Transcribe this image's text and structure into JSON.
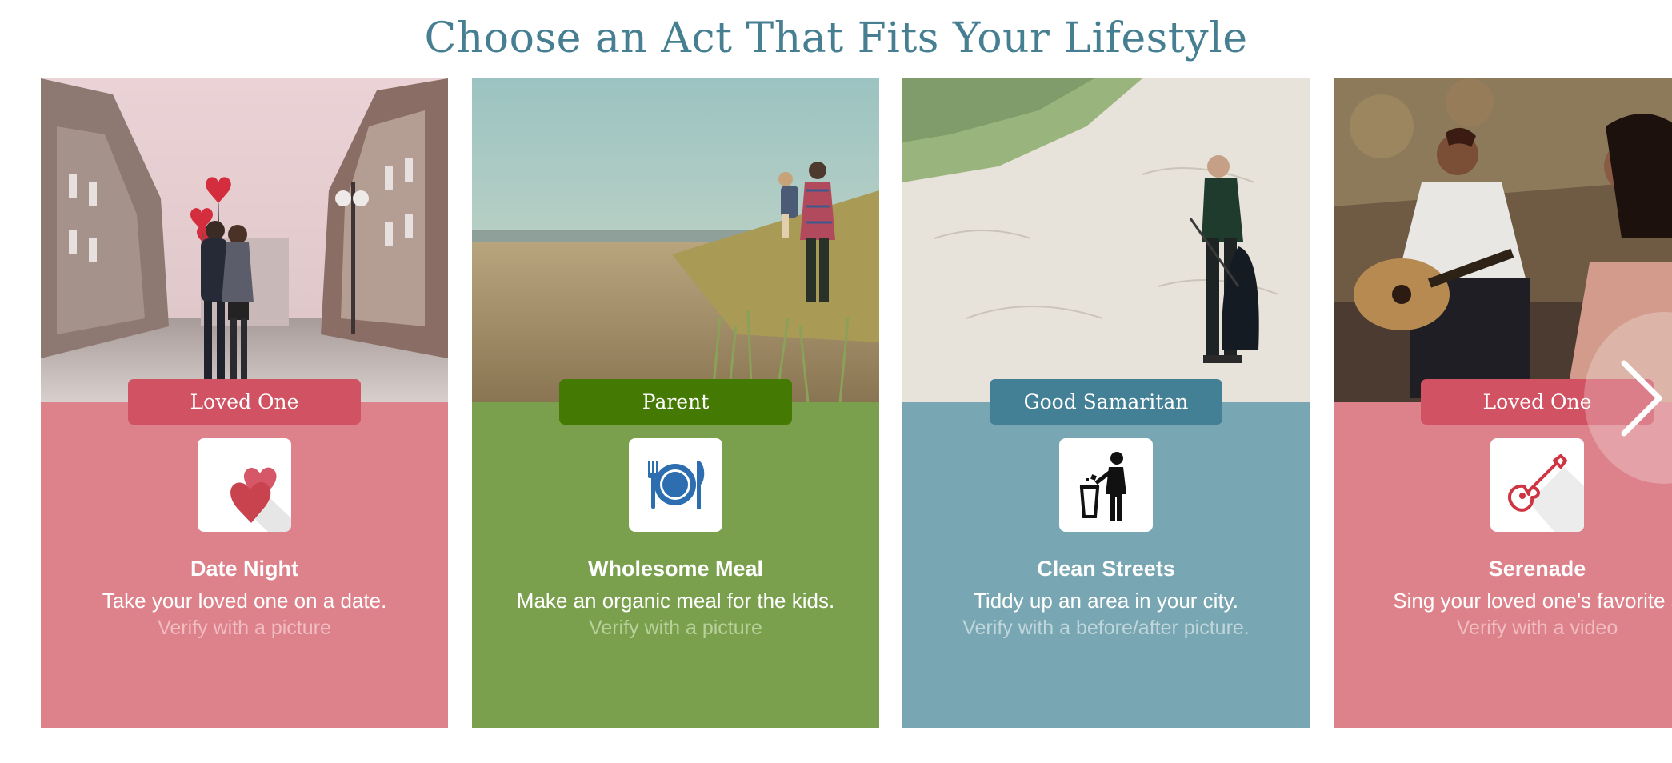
{
  "page": {
    "title": "Choose an Act That Fits Your Lifestyle"
  },
  "colors": {
    "title": "#467f91",
    "love_panel": "#dd828b",
    "love_badge": "#d05263",
    "parent_panel": "#7aa04d",
    "parent_badge": "#447a03",
    "samaritan_panel": "#78a6b2",
    "samaritan_badge": "#438096"
  },
  "cards": [
    {
      "category": "Loved One",
      "icon": "hearts-icon",
      "title": "Date Night",
      "description": "Take your loved one on a date.",
      "verify": "Verify with a picture",
      "photo": "couple kissing on city street with red balloons"
    },
    {
      "category": "Parent",
      "icon": "plate-fork-knife-icon",
      "title": "Wholesome Meal",
      "description": "Make an organic meal for the kids.",
      "verify": "Verify with a picture",
      "photo": "father carrying child on beach"
    },
    {
      "category": "Good Samaritan",
      "icon": "trash-disposal-icon",
      "title": "Clean Streets",
      "description": "Tiddy up an area in your city.",
      "verify": "Verify with a before/after picture.",
      "photo": "man picking up litter on sand dunes"
    },
    {
      "category": "Loved One",
      "icon": "guitar-icon",
      "title": "Serenade",
      "description": "Sing your loved one's favorite s",
      "verify": "Verify with a video",
      "photo": "man playing guitar to woman"
    }
  ],
  "carousel": {
    "next_icon": "chevron-right-icon"
  }
}
